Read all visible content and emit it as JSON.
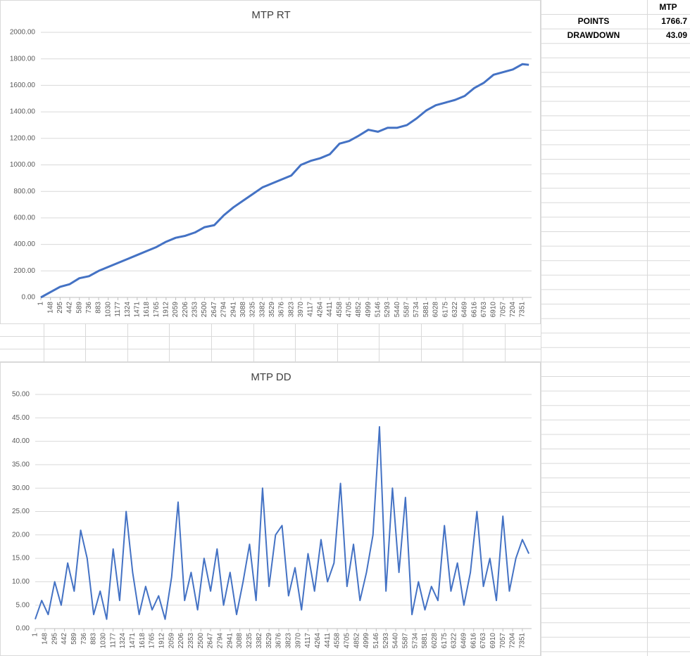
{
  "chart_data": [
    {
      "type": "line",
      "title": "MTP RT",
      "x": [
        1,
        148,
        295,
        442,
        589,
        736,
        883,
        1030,
        1177,
        1324,
        1471,
        1618,
        1765,
        1912,
        2059,
        2206,
        2353,
        2500,
        2647,
        2794,
        2941,
        3088,
        3235,
        3382,
        3529,
        3676,
        3823,
        3970,
        4117,
        4264,
        4411,
        4558,
        4705,
        4852,
        4999,
        5146,
        5293,
        5440,
        5587,
        5734,
        5881,
        6028,
        6175,
        6322,
        6469,
        6616,
        6763,
        6910,
        7057,
        7204,
        7351,
        7449
      ],
      "series": [
        {
          "color": "#4472c4",
          "values": [
            0,
            40,
            80,
            100,
            145,
            160,
            200,
            230,
            260,
            290,
            320,
            350,
            380,
            420,
            450,
            465,
            490,
            530,
            545,
            620,
            680,
            730,
            780,
            830,
            860,
            890,
            920,
            1000,
            1030,
            1050,
            1080,
            1160,
            1180,
            1220,
            1265,
            1250,
            1280,
            1280,
            1300,
            1350,
            1410,
            1450,
            1470,
            1490,
            1520,
            1580,
            1620,
            1680,
            1700,
            1720,
            1760,
            1755
          ]
        }
      ],
      "xlim": [
        1,
        7490
      ],
      "xticks": [
        1,
        148,
        295,
        442,
        589,
        736,
        883,
        1030,
        1177,
        1324,
        1471,
        1618,
        1765,
        1912,
        2059,
        2206,
        2353,
        2500,
        2647,
        2794,
        2941,
        3088,
        3235,
        3382,
        3529,
        3676,
        3823,
        3970,
        4117,
        4264,
        4411,
        4558,
        4705,
        4852,
        4999,
        5146,
        5293,
        5440,
        5587,
        5734,
        5881,
        6028,
        6175,
        6322,
        6469,
        6616,
        6763,
        6910,
        7057,
        7204,
        7351
      ],
      "ylim": [
        0,
        2000
      ],
      "yticks": [
        {
          "value": 0,
          "label": "0.00"
        },
        {
          "value": 200,
          "label": "200.00"
        },
        {
          "value": 400,
          "label": "400.00"
        },
        {
          "value": 600,
          "label": "600.00"
        },
        {
          "value": 800,
          "label": "800.00"
        },
        {
          "value": 1000,
          "label": "1000.00"
        },
        {
          "value": 1200,
          "label": "1200.00"
        },
        {
          "value": 1400,
          "label": "1400.00"
        },
        {
          "value": 1600,
          "label": "1600.00"
        },
        {
          "value": 1800,
          "label": "1800.00"
        },
        {
          "value": 2000,
          "label": "2000.00"
        }
      ],
      "grid": true
    },
    {
      "type": "line",
      "title": "MTP DD",
      "x": [
        1,
        99,
        197,
        295,
        393,
        491,
        589,
        687,
        785,
        883,
        981,
        1079,
        1177,
        1275,
        1373,
        1471,
        1569,
        1667,
        1765,
        1863,
        1961,
        2059,
        2157,
        2255,
        2353,
        2451,
        2549,
        2647,
        2745,
        2843,
        2941,
        3039,
        3137,
        3235,
        3333,
        3431,
        3529,
        3627,
        3725,
        3823,
        3921,
        4019,
        4117,
        4215,
        4313,
        4411,
        4509,
        4607,
        4705,
        4803,
        4901,
        4999,
        5097,
        5195,
        5293,
        5391,
        5489,
        5587,
        5685,
        5783,
        5881,
        5979,
        6077,
        6175,
        6273,
        6371,
        6469,
        6567,
        6665,
        6763,
        6861,
        6959,
        7057,
        7155,
        7253,
        7351,
        7449
      ],
      "series": [
        {
          "color": "#4472c4",
          "values": [
            2,
            6,
            3,
            10,
            5,
            14,
            8,
            21,
            15,
            3,
            8,
            2,
            17,
            6,
            25,
            12,
            3,
            9,
            4,
            7,
            2,
            11,
            27,
            6,
            12,
            4,
            15,
            8,
            17,
            5,
            12,
            3,
            10,
            18,
            6,
            30,
            9,
            20,
            22,
            7,
            13,
            4,
            16,
            8,
            19,
            10,
            14,
            31,
            9,
            18,
            6,
            12,
            20,
            43.09,
            8,
            30,
            12,
            28,
            3,
            10,
            4,
            9,
            6,
            22,
            8,
            14,
            5,
            12,
            25,
            9,
            15,
            6,
            24,
            8,
            15,
            19,
            16
          ]
        }
      ],
      "xlim": [
        1,
        7490
      ],
      "xticks": [
        1,
        148,
        295,
        442,
        589,
        736,
        883,
        1030,
        1177,
        1324,
        1471,
        1618,
        1765,
        1912,
        2059,
        2206,
        2353,
        2500,
        2647,
        2794,
        2941,
        3088,
        3235,
        3382,
        3529,
        3676,
        3823,
        3970,
        4117,
        4264,
        4411,
        4558,
        4705,
        4852,
        4999,
        5146,
        5293,
        5440,
        5587,
        5734,
        5881,
        6028,
        6175,
        6322,
        6469,
        6616,
        6763,
        6910,
        7057,
        7204,
        7351
      ],
      "ylim": [
        0,
        50
      ],
      "yticks": [
        {
          "value": 0,
          "label": "0.00"
        },
        {
          "value": 5,
          "label": "5.00"
        },
        {
          "value": 10,
          "label": "10.00"
        },
        {
          "value": 15,
          "label": "15.00"
        },
        {
          "value": 20,
          "label": "20.00"
        },
        {
          "value": 25,
          "label": "25.00"
        },
        {
          "value": 30,
          "label": "30.00"
        },
        {
          "value": 35,
          "label": "35.00"
        },
        {
          "value": 40,
          "label": "40.00"
        },
        {
          "value": 45,
          "label": "45.00"
        },
        {
          "value": 50,
          "label": "50.00"
        }
      ],
      "grid": true
    }
  ],
  "table": {
    "header": [
      "MTP"
    ],
    "rows": [
      [
        "POINTS",
        1766.7
      ],
      [
        "DRAWDOWN",
        43.09
      ]
    ]
  }
}
